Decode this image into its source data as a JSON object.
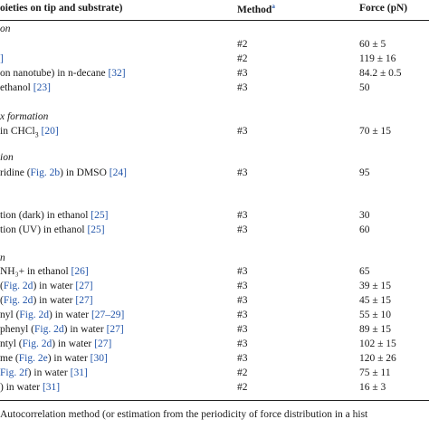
{
  "header": {
    "col1": "oieties on tip and substrate)",
    "col2": "Method",
    "col2_sup": "a",
    "col3": "Force (pN)"
  },
  "sections": [
    {
      "label": "on",
      "rows": [
        {
          "pre": "",
          "ref": "",
          "post": "",
          "method": "#2",
          "force": "60 ± 5"
        },
        {
          "pre": "",
          "ref": "]",
          "post": "",
          "method": "#2",
          "force": "119 ± 16"
        },
        {
          "pre": "on nanotube) in n-decane ",
          "ref": "[32]",
          "post": "",
          "method": "#3",
          "force": "84.2 ± 0.5"
        },
        {
          "pre": " ethanol ",
          "ref": "[23]",
          "post": "",
          "method": "#3",
          "force": "50"
        }
      ]
    },
    {
      "label": "x formation",
      "rows": [
        {
          "pre": " in CHCl",
          "sub": "3",
          "after_sub": " ",
          "ref": "[20]",
          "post": "",
          "method": "#3",
          "force": "70 ± 15"
        }
      ]
    },
    {
      "label": "ion",
      "rows": [
        {
          "pre": "ridine (",
          "ref": "Fig. 2b",
          "post": ") in DMSO ",
          "ref2": "[24]",
          "method": "#3",
          "force": "95"
        }
      ]
    },
    {
      "label": "",
      "rows": [
        {
          "pre": "tion (dark) in ethanol ",
          "ref": "[25]",
          "post": "",
          "method": "#3",
          "force": "30"
        },
        {
          "pre": "tion (UV) in ethanol ",
          "ref": "[25]",
          "post": "",
          "method": "#3",
          "force": "60"
        }
      ]
    },
    {
      "label": "n",
      "rows": [
        {
          "pre": "NH₃+ in ethanol ",
          "ref": "[26]",
          "post": "",
          "method": "#3",
          "force": "65"
        },
        {
          "pre": "(",
          "ref": "Fig. 2d",
          "post": ") in water ",
          "ref2": "[27]",
          "method": "#3",
          "force": "39 ± 15"
        },
        {
          "pre": " (",
          "ref": "Fig. 2d",
          "post": ") in water ",
          "ref2": "[27]",
          "method": "#3",
          "force": "45 ± 15"
        },
        {
          "pre": "nyl (",
          "ref": "Fig. 2d",
          "post": ") in water ",
          "ref2": "[27–29]",
          "method": "#3",
          "force": "55 ± 10"
        },
        {
          "pre": "phenyl (",
          "ref": "Fig. 2d",
          "post": ") in water ",
          "ref2": "[27]",
          "method": "#3",
          "force": "89 ± 15"
        },
        {
          "pre": "ntyl (",
          "ref": "Fig. 2d",
          "post": ") in water ",
          "ref2": "[27]",
          "method": "#3",
          "force": "102 ± 15"
        },
        {
          "pre": "me (",
          "ref": "Fig. 2e",
          "post": ") in water ",
          "ref2": "[30]",
          "method": "#3",
          "force": "120 ± 26"
        },
        {
          "pre": "",
          "ref": "Fig. 2f",
          "post": ") in water ",
          "ref2": "[31]",
          "method": "#2",
          "force": "75 ± 11"
        },
        {
          "pre": ") in water ",
          "ref": "[31]",
          "post": "",
          "method": "#2",
          "force": "16 ± 3"
        }
      ]
    }
  ],
  "footnote": "Autocorrelation method (or estimation from the periodicity of force distribution in a hist"
}
